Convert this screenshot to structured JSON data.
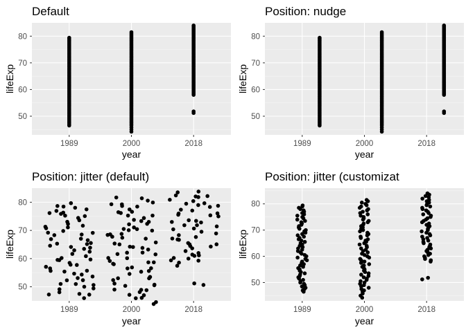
{
  "colors": {
    "panel_bg": "#ebebeb",
    "grid_major": "#ffffff",
    "grid_minor": "#f5f5f5",
    "points": "#000000",
    "tick_text": "#4d4d4d",
    "tick_mark": "#333333"
  },
  "chart_data": [
    {
      "type": "scatter",
      "title": "Default",
      "xlabel": "year",
      "ylabel": "lifeExp",
      "categories": [
        "1989",
        "2000",
        "2018"
      ],
      "yticks": [
        50,
        60,
        70,
        80
      ],
      "ylim": [
        43,
        85
      ],
      "grid": true,
      "position": "identity",
      "offsets": [
        0,
        0,
        0
      ],
      "spread": 0,
      "series": [
        {
          "category": "1989",
          "values": [
            46.5,
            47.0,
            47.5,
            48.0,
            48.5,
            49.0,
            49.5,
            50.0,
            50.5,
            51.0,
            51.5,
            52.0,
            52.5,
            53.0,
            53.5,
            54.0,
            54.5,
            55.0,
            55.5,
            56.0,
            56.5,
            57.0,
            57.5,
            58.0,
            58.5,
            59.0,
            59.5,
            60.0,
            60.5,
            61.0,
            61.5,
            62.0,
            62.5,
            63.0,
            63.5,
            64.0,
            64.5,
            65.0,
            65.5,
            66.0,
            66.5,
            67.0,
            67.5,
            68.0,
            68.5,
            69.0,
            69.5,
            70.0,
            70.5,
            71.0,
            71.5,
            72.0,
            72.5,
            73.0,
            73.5,
            74.0,
            74.5,
            75.0,
            75.5,
            76.0,
            76.5,
            77.0,
            77.5,
            78.0,
            78.5,
            79.0,
            79.4
          ]
        },
        {
          "category": "2000",
          "values": [
            44.2,
            45.0,
            45.8,
            46.5,
            47.0,
            47.5,
            48.0,
            48.5,
            49.0,
            49.5,
            50.0,
            50.5,
            51.0,
            51.5,
            52.0,
            52.5,
            53.0,
            53.5,
            54.0,
            54.5,
            55.0,
            55.5,
            56.0,
            56.5,
            57.0,
            57.5,
            58.0,
            58.5,
            59.0,
            59.5,
            60.0,
            60.5,
            61.0,
            61.5,
            62.0,
            62.5,
            63.0,
            63.5,
            64.0,
            64.5,
            65.0,
            65.5,
            66.0,
            66.5,
            67.0,
            67.5,
            68.0,
            68.5,
            69.0,
            69.5,
            70.0,
            70.5,
            71.0,
            71.5,
            72.0,
            72.5,
            73.0,
            73.5,
            74.0,
            74.5,
            75.0,
            75.5,
            76.0,
            76.5,
            77.0,
            77.5,
            78.0,
            78.5,
            79.0,
            79.5,
            80.0,
            80.5,
            81.0,
            81.5
          ]
        },
        {
          "category": "2018",
          "values": [
            51.2,
            51.8,
            58.0,
            58.5,
            59.0,
            59.5,
            60.0,
            60.5,
            61.0,
            61.5,
            62.0,
            62.5,
            63.0,
            63.5,
            64.0,
            64.5,
            65.0,
            65.5,
            66.0,
            66.5,
            67.0,
            67.5,
            68.0,
            68.5,
            69.0,
            69.5,
            70.0,
            70.5,
            71.0,
            71.5,
            72.0,
            72.5,
            73.0,
            73.5,
            74.0,
            74.5,
            75.0,
            75.5,
            76.0,
            76.5,
            77.0,
            77.5,
            78.0,
            78.5,
            79.0,
            79.5,
            80.0,
            80.5,
            81.0,
            81.5,
            82.0,
            82.5,
            83.0,
            83.5,
            84.0
          ]
        }
      ]
    },
    {
      "type": "scatter",
      "title": "Position: nudge",
      "xlabel": "year",
      "ylabel": "lifeExp",
      "categories": [
        "1989",
        "2000",
        "2018"
      ],
      "yticks": [
        50,
        60,
        70,
        80
      ],
      "ylim": [
        43,
        85
      ],
      "grid": true,
      "position": "nudge",
      "offsets": [
        0.28,
        0.28,
        0.28
      ],
      "spread": 0,
      "series": [
        {
          "category": "1989",
          "values": [
            46.5,
            47.0,
            47.5,
            48.0,
            48.5,
            49.0,
            49.5,
            50.0,
            50.5,
            51.0,
            51.5,
            52.0,
            52.5,
            53.0,
            53.5,
            54.0,
            54.5,
            55.0,
            55.5,
            56.0,
            56.5,
            57.0,
            57.5,
            58.0,
            58.5,
            59.0,
            59.5,
            60.0,
            60.5,
            61.0,
            61.5,
            62.0,
            62.5,
            63.0,
            63.5,
            64.0,
            64.5,
            65.0,
            65.5,
            66.0,
            66.5,
            67.0,
            67.5,
            68.0,
            68.5,
            69.0,
            69.5,
            70.0,
            70.5,
            71.0,
            71.5,
            72.0,
            72.5,
            73.0,
            73.5,
            74.0,
            74.5,
            75.0,
            75.5,
            76.0,
            76.5,
            77.0,
            77.5,
            78.0,
            78.5,
            79.0,
            79.4
          ]
        },
        {
          "category": "2000",
          "values": [
            44.2,
            45.0,
            45.8,
            46.5,
            47.0,
            47.5,
            48.0,
            48.5,
            49.0,
            49.5,
            50.0,
            50.5,
            51.0,
            51.5,
            52.0,
            52.5,
            53.0,
            53.5,
            54.0,
            54.5,
            55.0,
            55.5,
            56.0,
            56.5,
            57.0,
            57.5,
            58.0,
            58.5,
            59.0,
            59.5,
            60.0,
            60.5,
            61.0,
            61.5,
            62.0,
            62.5,
            63.0,
            63.5,
            64.0,
            64.5,
            65.0,
            65.5,
            66.0,
            66.5,
            67.0,
            67.5,
            68.0,
            68.5,
            69.0,
            69.5,
            70.0,
            70.5,
            71.0,
            71.5,
            72.0,
            72.5,
            73.0,
            73.5,
            74.0,
            74.5,
            75.0,
            75.5,
            76.0,
            76.5,
            77.0,
            77.5,
            78.0,
            78.5,
            79.0,
            79.5,
            80.0,
            80.5,
            81.0,
            81.5
          ]
        },
        {
          "category": "2018",
          "values": [
            51.2,
            51.8,
            58.0,
            58.5,
            59.0,
            59.5,
            60.0,
            60.5,
            61.0,
            61.5,
            62.0,
            62.5,
            63.0,
            63.5,
            64.0,
            64.5,
            65.0,
            65.5,
            66.0,
            66.5,
            67.0,
            67.5,
            68.0,
            68.5,
            69.0,
            69.5,
            70.0,
            70.5,
            71.0,
            71.5,
            72.0,
            72.5,
            73.0,
            73.5,
            74.0,
            74.5,
            75.0,
            75.5,
            76.0,
            76.5,
            77.0,
            77.5,
            78.0,
            78.5,
            79.0,
            79.5,
            80.0,
            80.5,
            81.0,
            81.5,
            82.0,
            82.5,
            83.0,
            83.5,
            84.0
          ]
        }
      ]
    },
    {
      "type": "scatter",
      "title": "Position: jitter (default)",
      "xlabel": "year",
      "ylabel": "lifeExp",
      "categories": [
        "1989",
        "2000",
        "2018"
      ],
      "yticks": [
        50,
        60,
        70,
        80
      ],
      "ylim": [
        45,
        85
      ],
      "grid": true,
      "position": "jitter",
      "offsets": [
        0,
        0,
        0
      ],
      "spread": 0.4,
      "series": [
        {
          "category": "1989",
          "values": [
            46.5,
            47.0,
            47.5,
            48.0,
            48.5,
            49.0,
            49.5,
            50.0,
            50.5,
            51.0,
            51.5,
            52.0,
            52.5,
            53.0,
            53.5,
            54.0,
            54.5,
            55.0,
            55.5,
            56.0,
            56.5,
            57.0,
            57.5,
            58.0,
            58.5,
            59.0,
            59.5,
            60.0,
            60.5,
            61.0,
            61.5,
            62.0,
            62.5,
            63.0,
            63.5,
            64.0,
            64.5,
            65.0,
            65.5,
            66.0,
            66.5,
            67.0,
            67.5,
            68.0,
            68.5,
            69.0,
            69.5,
            70.0,
            70.5,
            71.0,
            71.5,
            72.0,
            72.5,
            73.0,
            73.5,
            74.0,
            74.5,
            75.0,
            75.5,
            76.0,
            76.5,
            77.0,
            77.5,
            78.0,
            78.5,
            79.0,
            79.4
          ]
        },
        {
          "category": "2000",
          "values": [
            44.2,
            45.0,
            45.8,
            46.5,
            47.0,
            47.5,
            48.0,
            48.5,
            49.0,
            49.5,
            50.0,
            50.5,
            51.0,
            51.5,
            52.0,
            52.5,
            53.0,
            53.5,
            54.0,
            54.5,
            55.0,
            55.5,
            56.0,
            56.5,
            57.0,
            57.5,
            58.0,
            58.5,
            59.0,
            59.5,
            60.0,
            60.5,
            61.0,
            61.5,
            62.0,
            62.5,
            63.0,
            63.5,
            64.0,
            64.5,
            65.0,
            65.5,
            66.0,
            66.5,
            67.0,
            67.5,
            68.0,
            68.5,
            69.0,
            69.5,
            70.0,
            70.5,
            71.0,
            71.5,
            72.0,
            72.5,
            73.0,
            73.5,
            74.0,
            74.5,
            75.0,
            75.5,
            76.0,
            76.5,
            77.0,
            77.5,
            78.0,
            78.5,
            79.0,
            79.5,
            80.0,
            80.5,
            81.0,
            81.5
          ]
        },
        {
          "category": "2018",
          "values": [
            51.2,
            51.8,
            58.0,
            58.5,
            59.0,
            59.5,
            60.0,
            60.5,
            61.0,
            61.5,
            62.0,
            62.5,
            63.0,
            63.5,
            64.0,
            64.5,
            65.0,
            65.5,
            66.0,
            66.5,
            67.0,
            67.5,
            68.0,
            68.5,
            69.0,
            69.5,
            70.0,
            70.5,
            71.0,
            71.5,
            72.0,
            72.5,
            73.0,
            73.5,
            74.0,
            74.5,
            75.0,
            75.5,
            76.0,
            76.5,
            77.0,
            77.5,
            78.0,
            78.5,
            79.0,
            79.5,
            80.0,
            80.5,
            81.0,
            81.5,
            82.0,
            82.5,
            83.0,
            83.5,
            84.0
          ]
        }
      ]
    },
    {
      "type": "scatter",
      "title": "Position: jitter (customizat",
      "xlabel": "year",
      "ylabel": "lifeExp",
      "categories": [
        "1989",
        "2000",
        "2018"
      ],
      "yticks": [
        50,
        60,
        70,
        80
      ],
      "ylim": [
        43,
        86
      ],
      "grid": true,
      "position": "jitter",
      "offsets": [
        0,
        0,
        0
      ],
      "spread": 0.08,
      "series": [
        {
          "category": "1989",
          "values": [
            46.5,
            47.0,
            47.5,
            48.0,
            48.5,
            49.0,
            49.5,
            50.0,
            50.5,
            51.0,
            51.5,
            52.0,
            52.5,
            53.0,
            53.5,
            54.0,
            54.5,
            55.0,
            55.5,
            56.0,
            56.5,
            57.0,
            57.5,
            58.0,
            58.5,
            59.0,
            59.5,
            60.0,
            60.5,
            61.0,
            61.5,
            62.0,
            62.5,
            63.0,
            63.5,
            64.0,
            64.5,
            65.0,
            65.5,
            66.0,
            66.5,
            67.0,
            67.5,
            68.0,
            68.5,
            69.0,
            69.5,
            70.0,
            70.5,
            71.0,
            71.5,
            72.0,
            72.5,
            73.0,
            73.5,
            74.0,
            74.5,
            75.0,
            75.5,
            76.0,
            76.5,
            77.0,
            77.5,
            78.0,
            78.5,
            79.0,
            79.4
          ]
        },
        {
          "category": "2000",
          "values": [
            44.2,
            45.0,
            45.8,
            46.5,
            47.0,
            47.5,
            48.0,
            48.5,
            49.0,
            49.5,
            50.0,
            50.5,
            51.0,
            51.5,
            52.0,
            52.5,
            53.0,
            53.5,
            54.0,
            54.5,
            55.0,
            55.5,
            56.0,
            56.5,
            57.0,
            57.5,
            58.0,
            58.5,
            59.0,
            59.5,
            60.0,
            60.5,
            61.0,
            61.5,
            62.0,
            62.5,
            63.0,
            63.5,
            64.0,
            64.5,
            65.0,
            65.5,
            66.0,
            66.5,
            67.0,
            67.5,
            68.0,
            68.5,
            69.0,
            69.5,
            70.0,
            70.5,
            71.0,
            71.5,
            72.0,
            72.5,
            73.0,
            73.5,
            74.0,
            74.5,
            75.0,
            75.5,
            76.0,
            76.5,
            77.0,
            77.5,
            78.0,
            78.5,
            79.0,
            79.5,
            80.0,
            80.5,
            81.0,
            81.5
          ]
        },
        {
          "category": "2018",
          "values": [
            51.2,
            51.8,
            58.0,
            58.5,
            59.0,
            59.5,
            60.0,
            60.5,
            61.0,
            61.5,
            62.0,
            62.5,
            63.0,
            63.5,
            64.0,
            64.5,
            65.0,
            65.5,
            66.0,
            66.5,
            67.0,
            67.5,
            68.0,
            68.5,
            69.0,
            69.5,
            70.0,
            70.5,
            71.0,
            71.5,
            72.0,
            72.5,
            73.0,
            73.5,
            74.0,
            74.5,
            75.0,
            75.5,
            76.0,
            76.5,
            77.0,
            77.5,
            78.0,
            78.5,
            79.0,
            79.5,
            80.0,
            80.5,
            81.0,
            81.5,
            82.0,
            82.5,
            83.0,
            83.5,
            84.0
          ]
        }
      ]
    }
  ]
}
